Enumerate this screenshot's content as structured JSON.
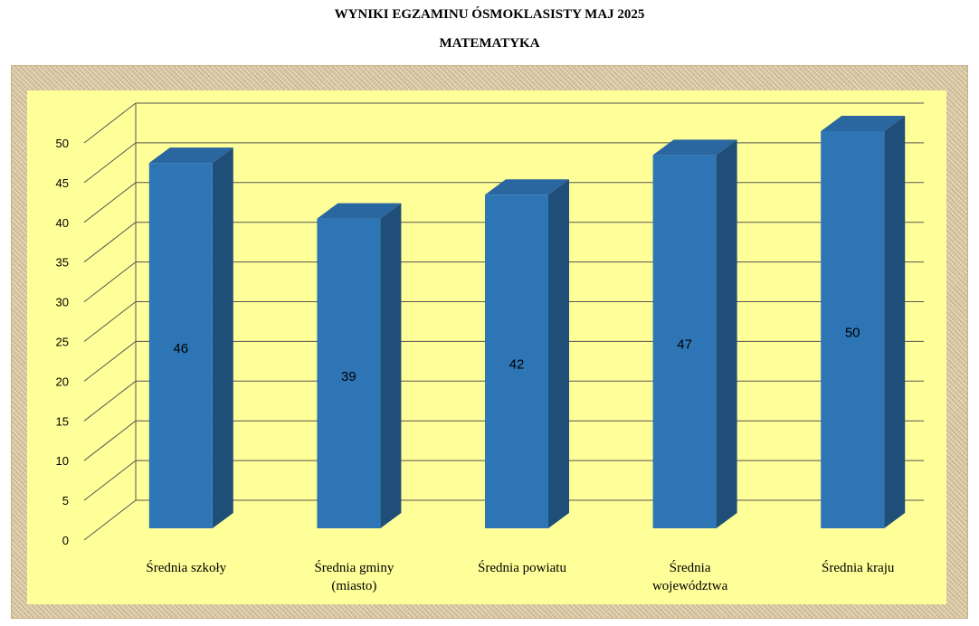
{
  "colors": {
    "plot_bg": "#ffff99",
    "bar_front": "#2e75b6",
    "bar_top": "#2a66a0",
    "bar_side": "#1f4e79",
    "grid": "#555555",
    "frame": "#dcc9a0"
  },
  "chart_data": {
    "type": "bar",
    "style": "3d-column",
    "title": "WYNIKI EGZAMINU ÓSMOKLASISTY MAJ 2025",
    "subtitle": "MATEMATYKA",
    "categories": [
      [
        "Średnia szkoły"
      ],
      [
        "Średnia gminy",
        "(miasto)"
      ],
      [
        "Średnia powiatu"
      ],
      [
        "Średnia",
        "województwa"
      ],
      [
        "Średnia kraju"
      ]
    ],
    "values": [
      46,
      39,
      42,
      47,
      50
    ],
    "data_labels": [
      "46",
      "39",
      "42",
      "47",
      "50"
    ],
    "ylim": [
      0,
      50
    ],
    "yticks": [
      0,
      5,
      10,
      15,
      20,
      25,
      30,
      35,
      40,
      45,
      50
    ],
    "grid": true,
    "legend": "none"
  }
}
